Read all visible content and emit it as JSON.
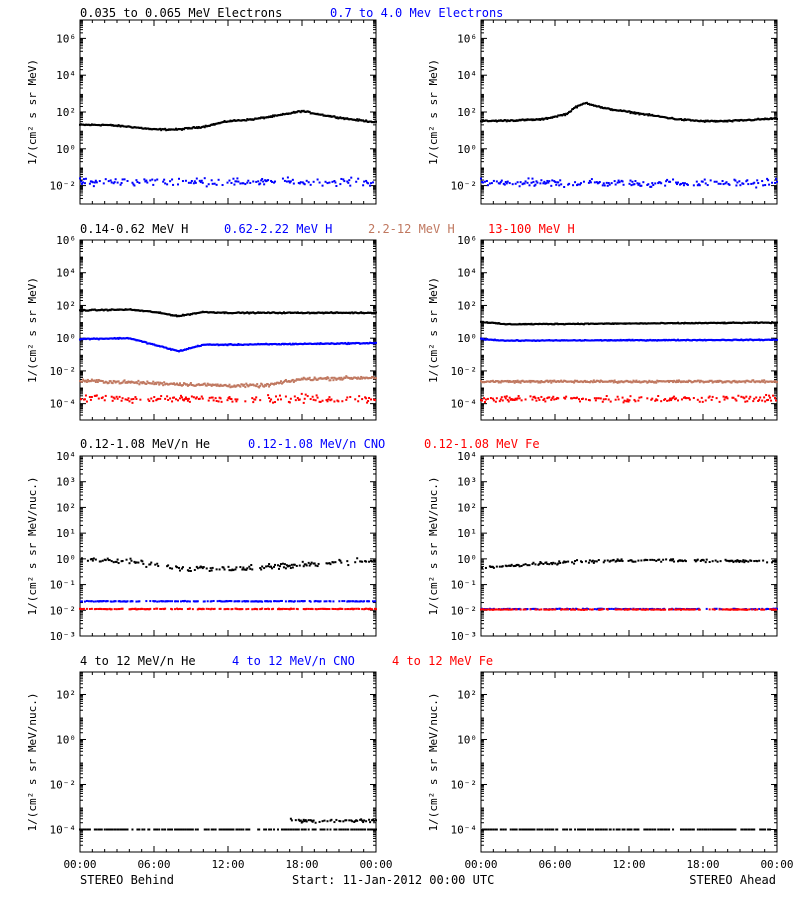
{
  "footer": {
    "left": "STEREO Behind",
    "center": "Start: 11-Jan-2012 00:00 UTC",
    "right": "STEREO Ahead"
  },
  "x_ticks": [
    "00:00",
    "06:00",
    "12:00",
    "18:00",
    "00:00"
  ],
  "legend_rows": [
    [
      {
        "text": "0.035 to 0.065 MeV Electrons",
        "color": "#000000"
      },
      {
        "text": "0.7 to 4.0 Mev Electrons",
        "color": "#0000ff"
      }
    ],
    [
      {
        "text": "0.14-0.62 MeV H",
        "color": "#000000"
      },
      {
        "text": "0.62-2.22 MeV H",
        "color": "#0000ff"
      },
      {
        "text": "2.2-12 MeV H",
        "color": "#c07860"
      },
      {
        "text": "13-100 MeV H",
        "color": "#ff0000"
      }
    ],
    [
      {
        "text": "0.12-1.08 MeV/n He",
        "color": "#000000"
      },
      {
        "text": "0.12-1.08 MeV/n CNO",
        "color": "#0000ff"
      },
      {
        "text": "0.12-1.08 MeV Fe",
        "color": "#ff0000"
      }
    ],
    [
      {
        "text": "4 to 12 MeV/n He",
        "color": "#000000"
      },
      {
        "text": "4 to 12 MeV/n CNO",
        "color": "#0000ff"
      },
      {
        "text": "4 to 12 MeV Fe",
        "color": "#ff0000"
      }
    ]
  ],
  "chart_data": [
    {
      "type": "scatter",
      "panel": "behind-electrons",
      "ylabel": "1/(cm² s sr MeV)",
      "yscale": "log",
      "ylim": [
        -3,
        7
      ],
      "yticks": [
        "10⁻²",
        "10⁰",
        "10²",
        "10⁴",
        "10⁶"
      ],
      "xlim": [
        0,
        24
      ],
      "series": [
        {
          "name": "0.035 to 0.065 MeV Electrons",
          "color": "#000000",
          "noise": 0.06,
          "x": [
            0,
            2,
            4,
            6,
            8,
            10,
            12,
            14,
            16,
            18,
            20,
            22,
            24
          ],
          "log10y": [
            1.3,
            1.3,
            1.2,
            1.05,
            1.05,
            1.2,
            1.5,
            1.6,
            1.8,
            2.05,
            1.8,
            1.6,
            1.45
          ]
        },
        {
          "name": "0.7 to 4.0 Mev Electrons",
          "color": "#0000ff",
          "noise": 0.3,
          "sparse": true,
          "x": [
            0,
            24
          ],
          "log10y": [
            -1.8,
            -1.8
          ]
        }
      ]
    },
    {
      "type": "scatter",
      "panel": "ahead-electrons",
      "ylabel": "1/(cm² s sr MeV)",
      "yscale": "log",
      "ylim": [
        -3,
        7
      ],
      "yticks": [
        "10⁻²",
        "10⁰",
        "10²",
        "10⁴",
        "10⁶"
      ],
      "xlim": [
        0,
        24
      ],
      "series": [
        {
          "name": "0.035 to 0.065 MeV Electrons",
          "color": "#000000",
          "noise": 0.06,
          "x": [
            0,
            3,
            5,
            7,
            7.5,
            8.5,
            10,
            12,
            14,
            16,
            18,
            20,
            24
          ],
          "log10y": [
            1.5,
            1.55,
            1.6,
            1.9,
            2.2,
            2.5,
            2.2,
            2.0,
            1.8,
            1.6,
            1.5,
            1.5,
            1.65
          ]
        },
        {
          "name": "0.7 to 4.0 Mev Electrons",
          "color": "#0000ff",
          "noise": 0.3,
          "sparse": true,
          "x": [
            0,
            24
          ],
          "log10y": [
            -1.85,
            -1.85
          ]
        }
      ]
    },
    {
      "type": "scatter",
      "panel": "behind-protons",
      "ylabel": "1/(cm² s sr MeV)",
      "yscale": "log",
      "ylim": [
        -5,
        6
      ],
      "yticks": [
        "10⁻⁴",
        "10⁻²",
        "10⁰",
        "10²",
        "10⁴",
        "10⁶"
      ],
      "xlim": [
        0,
        24
      ],
      "series": [
        {
          "name": "0.14-0.62 MeV H",
          "color": "#000000",
          "noise": 0.05,
          "x": [
            0,
            4,
            6,
            8,
            10,
            12,
            24
          ],
          "log10y": [
            1.7,
            1.75,
            1.6,
            1.35,
            1.6,
            1.55,
            1.55
          ]
        },
        {
          "name": "0.62-2.22 MeV H",
          "color": "#0000ff",
          "noise": 0.05,
          "x": [
            0,
            4,
            6,
            8,
            10,
            12,
            24
          ],
          "log10y": [
            -0.05,
            0.0,
            -0.4,
            -0.8,
            -0.4,
            -0.4,
            -0.3
          ]
        },
        {
          "name": "2.2-12 MeV H",
          "color": "#c07860",
          "noise": 0.15,
          "x": [
            0,
            12,
            15,
            18,
            24
          ],
          "log10y": [
            -2.6,
            -2.9,
            -2.9,
            -2.5,
            -2.4
          ]
        },
        {
          "name": "13-100 MeV H",
          "color": "#ff0000",
          "noise": 0.35,
          "sparse": true,
          "x": [
            0,
            24
          ],
          "log10y": [
            -3.7,
            -3.7
          ]
        }
      ]
    },
    {
      "type": "scatter",
      "panel": "ahead-protons",
      "ylabel": "1/(cm² s sr MeV)",
      "yscale": "log",
      "ylim": [
        -5,
        6
      ],
      "yticks": [
        "10⁻⁴",
        "10⁻²",
        "10⁰",
        "10²",
        "10⁴",
        "10⁶"
      ],
      "xlim": [
        0,
        24
      ],
      "series": [
        {
          "name": "0.14-0.62 MeV H",
          "color": "#000000",
          "noise": 0.04,
          "x": [
            0,
            2,
            24
          ],
          "log10y": [
            1.0,
            0.85,
            0.95
          ]
        },
        {
          "name": "0.62-2.22 MeV H",
          "color": "#0000ff",
          "noise": 0.04,
          "x": [
            0,
            2,
            24
          ],
          "log10y": [
            -0.05,
            -0.15,
            -0.1
          ]
        },
        {
          "name": "2.2-12 MeV H",
          "color": "#c07860",
          "noise": 0.1,
          "x": [
            0,
            24
          ],
          "log10y": [
            -2.65,
            -2.65
          ]
        },
        {
          "name": "13-100 MeV H",
          "color": "#ff0000",
          "noise": 0.3,
          "sparse": true,
          "x": [
            0,
            24
          ],
          "log10y": [
            -3.7,
            -3.7
          ]
        }
      ]
    },
    {
      "type": "scatter",
      "panel": "behind-heavy-ions-low",
      "ylabel": "1/(cm² s sr MeV/nuc.)",
      "yscale": "log",
      "ylim": [
        -3,
        4
      ],
      "yticks": [
        "10⁻³",
        "10⁻²",
        "10⁻¹",
        "10⁰",
        "10¹",
        "10²",
        "10³",
        "10⁴"
      ],
      "xlim": [
        0,
        24
      ],
      "series": [
        {
          "name": "0.12-1.08 MeV/n He",
          "color": "#000000",
          "noise": 0.18,
          "sparse": true,
          "x": [
            0,
            6,
            8,
            12,
            24
          ],
          "log10y": [
            0.0,
            -0.2,
            -0.35,
            -0.4,
            -0.05
          ]
        },
        {
          "name": "0.12-1.08 MeV/n CNO",
          "color": "#0000ff",
          "noise": 0.02,
          "sparse": true,
          "x": [
            0,
            24
          ],
          "log10y": [
            -1.65,
            -1.65
          ]
        },
        {
          "name": "0.12-1.08 MeV Fe",
          "color": "#ff0000",
          "noise": 0.02,
          "sparse": true,
          "x": [
            0,
            24
          ],
          "log10y": [
            -1.95,
            -1.95
          ]
        }
      ]
    },
    {
      "type": "scatter",
      "panel": "ahead-heavy-ions-low",
      "ylabel": "1/(cm² s sr MeV/nuc.)",
      "yscale": "log",
      "ylim": [
        -3,
        4
      ],
      "yticks": [
        "10⁻³",
        "10⁻²",
        "10⁻¹",
        "10⁰",
        "10¹",
        "10²",
        "10³",
        "10⁴"
      ],
      "xlim": [
        0,
        24
      ],
      "series": [
        {
          "name": "0.12-1.08 MeV/n He",
          "color": "#000000",
          "noise": 0.08,
          "sparse": true,
          "x": [
            0,
            6,
            12,
            24
          ],
          "log10y": [
            -0.35,
            -0.15,
            -0.05,
            -0.1
          ]
        },
        {
          "name": "0.12-1.08 MeV/n CNO",
          "color": "#0000ff",
          "noise": 0.02,
          "sparse": true,
          "x": [
            0,
            24
          ],
          "log10y": [
            -1.95,
            -1.95
          ]
        },
        {
          "name": "0.12-1.08 MeV Fe",
          "color": "#ff0000",
          "noise": 0.02,
          "sparse": true,
          "x": [
            0,
            24
          ],
          "log10y": [
            -1.97,
            -1.97
          ]
        }
      ]
    },
    {
      "type": "scatter",
      "panel": "behind-heavy-ions-high",
      "ylabel": "1/(cm² s sr MeV/nuc.)",
      "yscale": "log",
      "ylim": [
        -5,
        3
      ],
      "yticks": [
        "10⁻⁴",
        "10⁻²",
        "10⁰",
        "10²"
      ],
      "xlim": [
        0,
        24
      ],
      "series": [
        {
          "name": "4 to 12 MeV/n He",
          "color": "#000000",
          "noise": 0.0,
          "sparse": true,
          "x": [
            0,
            24
          ],
          "log10y": [
            -4.0,
            -4.0
          ]
        },
        {
          "name": "4 to 12 MeV/n He (bursts)",
          "color": "#000000",
          "noise": 0.12,
          "sparse": true,
          "x": [
            17,
            24
          ],
          "log10y": [
            -3.6,
            -3.6
          ]
        }
      ]
    },
    {
      "type": "scatter",
      "panel": "ahead-heavy-ions-high",
      "ylabel": "1/(cm² s sr MeV/nuc.)",
      "yscale": "log",
      "ylim": [
        -5,
        3
      ],
      "yticks": [
        "10⁻⁴",
        "10⁻²",
        "10⁰",
        "10²"
      ],
      "xlim": [
        0,
        24
      ],
      "series": [
        {
          "name": "4 to 12 MeV/n He",
          "color": "#000000",
          "noise": 0.0,
          "sparse": true,
          "x": [
            0,
            24
          ],
          "log10y": [
            -4.0,
            -4.0
          ]
        }
      ]
    }
  ]
}
